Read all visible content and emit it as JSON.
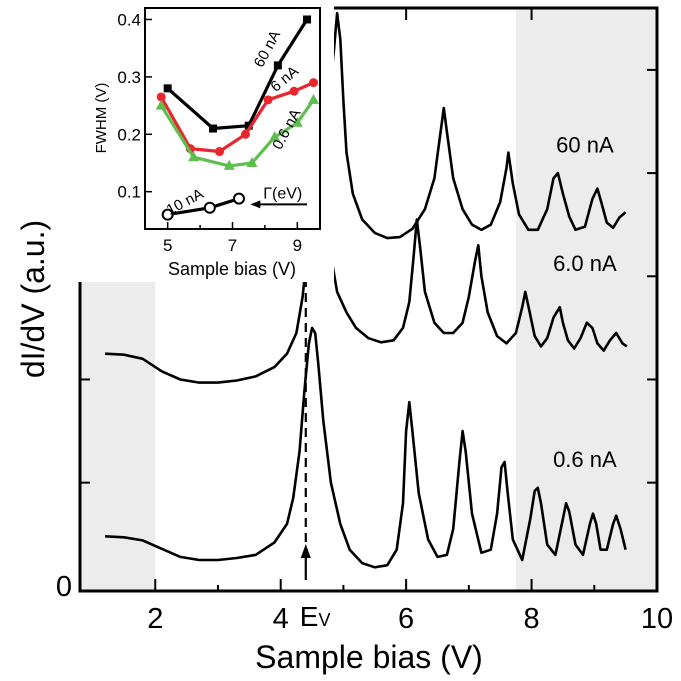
{
  "chart_data": [
    {
      "type": "line",
      "xlabel": "Sample bias (V)",
      "ylabel": "dI/dV (a.u.)",
      "xlim": [
        0.8,
        10
      ],
      "ylim": [
        -0.05,
        5.6
      ],
      "x_ticks": [
        2,
        4,
        6,
        8,
        10
      ],
      "y_ticks": [
        0
      ],
      "shaded_regions": [
        [
          0.8,
          2.0
        ],
        [
          7.75,
          10
        ]
      ],
      "marker_line": {
        "x": 4.4,
        "label": "E",
        "label_sub": "V"
      },
      "series": [
        {
          "name": "60 nA",
          "x": [
            4.45,
            4.55,
            4.65,
            4.75,
            4.85,
            4.9,
            4.95,
            5.0,
            5.05,
            5.15,
            5.3,
            5.5,
            5.7,
            5.9,
            6.1,
            6.3,
            6.45,
            6.55,
            6.6,
            6.65,
            6.75,
            6.9,
            7.05,
            7.2,
            7.35,
            7.5,
            7.6,
            7.63,
            7.7,
            7.8,
            7.95,
            8.1,
            8.25,
            8.35,
            8.42,
            8.5,
            8.6,
            8.7,
            8.85,
            8.97,
            9.05,
            9.12,
            9.2,
            9.3,
            9.4,
            9.5
          ],
          "y": [
            3.15,
            3.5,
            4.0,
            4.6,
            5.2,
            5.55,
            5.3,
            4.7,
            4.2,
            3.8,
            3.55,
            3.42,
            3.37,
            3.38,
            3.46,
            3.65,
            3.95,
            4.4,
            4.63,
            4.4,
            3.95,
            3.65,
            3.5,
            3.45,
            3.5,
            3.72,
            4.05,
            4.2,
            3.9,
            3.6,
            3.45,
            3.45,
            3.65,
            3.95,
            4.0,
            3.8,
            3.58,
            3.45,
            3.48,
            3.75,
            3.85,
            3.7,
            3.52,
            3.47,
            3.57,
            3.62
          ]
        },
        {
          "name": "6.0 nA",
          "x": [
            1.2,
            1.5,
            1.8,
            2.1,
            2.4,
            2.7,
            3.0,
            3.3,
            3.6,
            3.9,
            4.1,
            4.25,
            4.35,
            4.45,
            4.55,
            4.62,
            4.67,
            4.72,
            4.8,
            4.9,
            5.05,
            5.2,
            5.4,
            5.6,
            5.8,
            5.95,
            6.05,
            6.12,
            6.17,
            6.22,
            6.3,
            6.45,
            6.6,
            6.75,
            6.9,
            7.0,
            7.1,
            7.15,
            7.2,
            7.3,
            7.45,
            7.6,
            7.75,
            7.85,
            7.9,
            7.97,
            8.05,
            8.15,
            8.25,
            8.35,
            8.45,
            8.5,
            8.58,
            8.68,
            8.78,
            8.88,
            8.97,
            9.05,
            9.15,
            9.25,
            9.35,
            9.45,
            9.52
          ],
          "y": [
            2.25,
            2.24,
            2.2,
            2.08,
            2.0,
            1.97,
            1.97,
            1.99,
            2.03,
            2.12,
            2.25,
            2.45,
            2.8,
            3.4,
            4.1,
            4.35,
            4.2,
            3.7,
            3.2,
            2.85,
            2.65,
            2.5,
            2.4,
            2.36,
            2.38,
            2.5,
            2.75,
            3.2,
            3.55,
            3.3,
            2.85,
            2.55,
            2.45,
            2.45,
            2.55,
            2.8,
            3.15,
            3.3,
            3.0,
            2.65,
            2.42,
            2.35,
            2.45,
            2.7,
            2.85,
            2.65,
            2.42,
            2.32,
            2.4,
            2.6,
            2.7,
            2.55,
            2.38,
            2.3,
            2.4,
            2.55,
            2.5,
            2.35,
            2.28,
            2.38,
            2.45,
            2.35,
            2.32
          ]
        },
        {
          "name": "0.6 nA",
          "x": [
            1.2,
            1.5,
            1.8,
            2.1,
            2.4,
            2.7,
            3.0,
            3.3,
            3.6,
            3.9,
            4.1,
            4.2,
            4.3,
            4.38,
            4.45,
            4.5,
            4.55,
            4.6,
            4.68,
            4.8,
            4.95,
            5.1,
            5.3,
            5.5,
            5.7,
            5.85,
            5.95,
            6.0,
            6.05,
            6.1,
            6.2,
            6.35,
            6.5,
            6.65,
            6.75,
            6.85,
            6.9,
            6.95,
            7.05,
            7.2,
            7.35,
            7.45,
            7.52,
            7.57,
            7.62,
            7.7,
            7.85,
            7.98,
            8.05,
            8.1,
            8.15,
            8.25,
            8.38,
            8.5,
            8.55,
            8.6,
            8.7,
            8.82,
            8.93,
            8.98,
            9.03,
            9.1,
            9.2,
            9.3,
            9.35,
            9.42,
            9.5
          ],
          "y": [
            0.48,
            0.47,
            0.44,
            0.36,
            0.28,
            0.25,
            0.25,
            0.27,
            0.3,
            0.42,
            0.6,
            0.85,
            1.3,
            1.9,
            2.35,
            2.5,
            2.45,
            2.15,
            1.6,
            1.0,
            0.6,
            0.35,
            0.22,
            0.18,
            0.2,
            0.35,
            0.8,
            1.5,
            1.78,
            1.5,
            0.9,
            0.45,
            0.28,
            0.3,
            0.55,
            1.2,
            1.5,
            1.3,
            0.7,
            0.32,
            0.35,
            0.7,
            1.15,
            1.2,
            0.9,
            0.45,
            0.25,
            0.65,
            0.92,
            0.95,
            0.8,
            0.4,
            0.3,
            0.65,
            0.8,
            0.72,
            0.4,
            0.3,
            0.6,
            0.7,
            0.6,
            0.35,
            0.35,
            0.6,
            0.68,
            0.55,
            0.35
          ]
        }
      ]
    },
    {
      "type": "line",
      "xlabel": "Sample bias (V)",
      "ylabel": "FWHM (V)",
      "xlim": [
        4.3,
        9.7
      ],
      "ylim": [
        0.035,
        0.42
      ],
      "x_ticks": [
        5,
        7,
        9
      ],
      "y_ticks": [
        0.1,
        0.2,
        0.3,
        0.4
      ],
      "series": [
        {
          "name": "60 nA",
          "color": "#000000",
          "marker": "square",
          "x": [
            5.0,
            6.4,
            7.5,
            8.4,
            9.3
          ],
          "y": [
            0.28,
            0.21,
            0.215,
            0.32,
            0.4
          ]
        },
        {
          "name": "6 nA",
          "color": "#e8262c",
          "marker": "circle",
          "x": [
            4.8,
            5.7,
            6.6,
            7.4,
            8.1,
            8.9,
            9.5
          ],
          "y": [
            0.265,
            0.175,
            0.17,
            0.2,
            0.26,
            0.275,
            0.29
          ]
        },
        {
          "name": "0.6 nA",
          "color": "#5fbf4e",
          "marker": "triangle",
          "x": [
            4.8,
            5.8,
            6.9,
            7.6,
            8.3,
            9.0,
            9.5
          ],
          "y": [
            0.25,
            0.16,
            0.145,
            0.15,
            0.195,
            0.22,
            0.26
          ]
        },
        {
          "name": "10 nA",
          "color": "#000000",
          "marker": "open-circle",
          "x": [
            5.0,
            6.3,
            7.2
          ],
          "y": [
            0.06,
            0.072,
            0.088
          ]
        }
      ],
      "annotation": {
        "text": "Γ(eV)",
        "target_series": "10 nA"
      }
    }
  ]
}
